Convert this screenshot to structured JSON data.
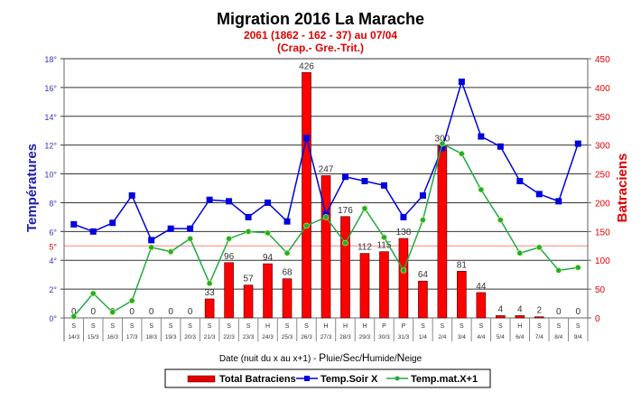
{
  "chart_data": {
    "type": "bar+line",
    "title": "Migration 2016 La Marache",
    "subtitle1": "2061 (1862 - 162 - 37) au 07/04",
    "subtitle2": "(Crap.- Gre.-Trit.)",
    "ylabel_left": "Températures",
    "ylabel_right": "Batraciens",
    "xlabel_prefix": "Date (nuit du x au x+1) - ",
    "xlabel_weather": [
      [
        "P",
        "luie/"
      ],
      [
        "S",
        "ec/"
      ],
      [
        "H",
        "umide/"
      ],
      [
        "N",
        "eige"
      ]
    ],
    "ylim_left": [
      0,
      18
    ],
    "yticks_left": [
      "0°",
      "2°",
      "4°",
      "6°",
      "8°",
      "10°",
      "12°",
      "14°",
      "16°",
      "18°"
    ],
    "threshold_label": "5°",
    "threshold_value": 5,
    "ylim_right": [
      0,
      450
    ],
    "yticks_right": [
      "0",
      "50",
      "100",
      "150",
      "200",
      "250",
      "300",
      "350",
      "400",
      "450"
    ],
    "grid": true,
    "legend_position": "bottom",
    "categories": [
      "14/3",
      "15/3",
      "16/3",
      "17/3",
      "18/3",
      "19/3",
      "20/3",
      "21/3",
      "22/3",
      "23/3",
      "24/3",
      "25/3",
      "26/3",
      "27/3",
      "28/3",
      "29/3",
      "30/3",
      "31/3",
      "1/4",
      "2/4",
      "3/4",
      "4/4",
      "5/4",
      "6/4",
      "7/4",
      "8/4",
      "9/4"
    ],
    "weather": [
      "S",
      "S",
      "S",
      "S",
      "S",
      "S",
      "S",
      "S",
      "S",
      "S",
      "H",
      "S",
      "S",
      "H",
      "H",
      "H",
      "P",
      "P",
      "S",
      "S",
      "S",
      "S",
      "S",
      "H",
      "S",
      "S",
      "S"
    ],
    "series": [
      {
        "name": "Total Batraciens",
        "type": "bar",
        "axis": "right",
        "color": "#ff0000",
        "values": [
          0,
          0,
          0,
          0,
          0,
          0,
          0,
          33,
          96,
          57,
          94,
          68,
          426,
          247,
          176,
          112,
          115,
          138,
          64,
          300,
          81,
          44,
          4,
          4,
          2,
          0,
          0
        ]
      },
      {
        "name": "Temp.Soir X",
        "type": "line",
        "axis": "left",
        "color": "#0000dd",
        "marker": "square",
        "values": [
          6.5,
          6.0,
          6.6,
          8.5,
          5.4,
          6.2,
          6.2,
          8.2,
          8.1,
          7.0,
          8.0,
          6.7,
          12.5,
          7.2,
          9.8,
          9.5,
          9.2,
          7.0,
          8.5,
          11.8,
          16.4,
          12.6,
          11.9,
          9.5,
          8.6,
          8.1,
          12.1
        ]
      },
      {
        "name": "Temp.mat.X+1",
        "type": "line",
        "axis": "left",
        "color": "#22aa44",
        "marker": "circle",
        "values": [
          0.1,
          1.7,
          0.4,
          1.2,
          4.9,
          4.6,
          5.5,
          2.4,
          5.5,
          6.0,
          5.9,
          4.5,
          6.4,
          7.0,
          5.2,
          7.6,
          5.6,
          3.3,
          6.8,
          12.1,
          11.4,
          8.9,
          6.8,
          4.5,
          4.9,
          3.3,
          3.5
        ]
      }
    ]
  }
}
